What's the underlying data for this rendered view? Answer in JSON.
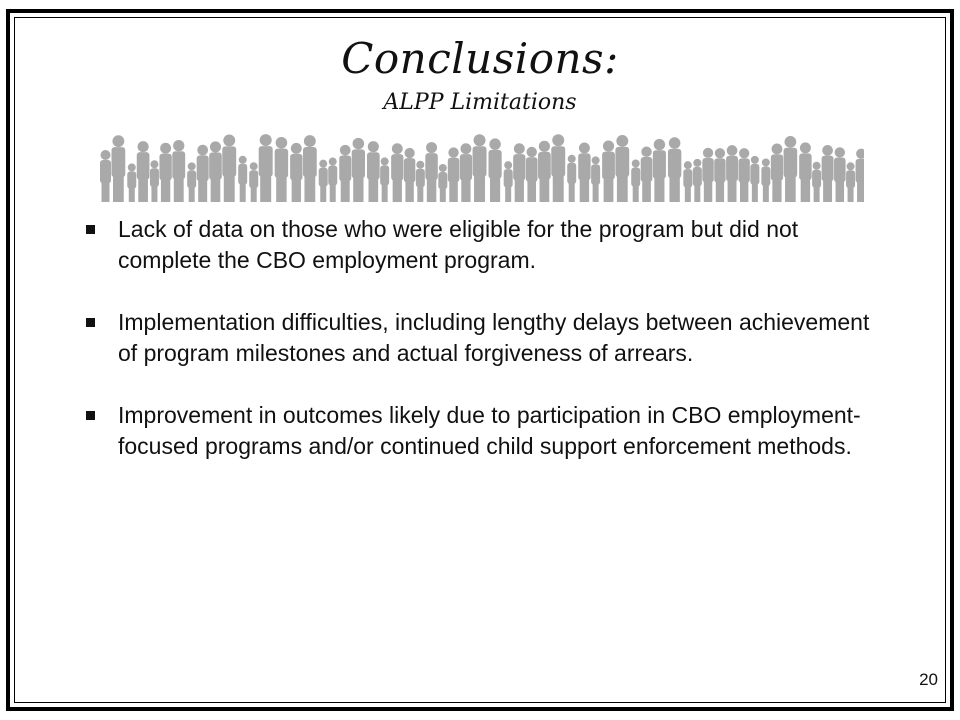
{
  "slide": {
    "title": "Conclusions:",
    "subtitle": "ALPP Limitations",
    "decoration": "people-silhouette-crowd",
    "bullets": [
      {
        "text": "Lack of data on those who were eligible for the program but did not complete the CBO employment program."
      },
      {
        "text": "Implementation difficulties, including lengthy delays between achievement of program milestones and actual forgiveness of arrears."
      },
      {
        "text": "Improvement in outcomes likely due to participation in CBO employment-focused programs and/or continued child support enforcement methods."
      }
    ],
    "page_number": "20"
  },
  "colors": {
    "text": "#111111",
    "frame": "#000000",
    "silhouette": "#a9a9a9"
  }
}
